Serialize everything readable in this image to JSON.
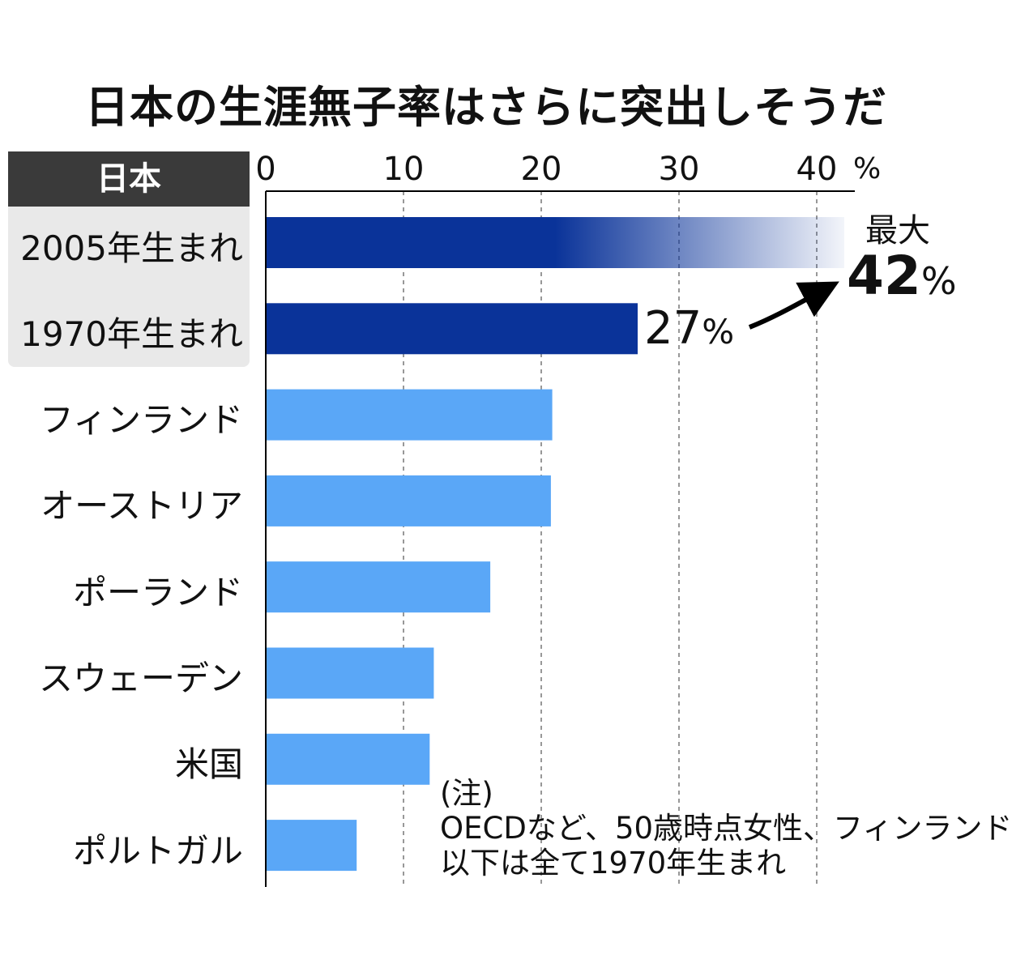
{
  "chart_data": {
    "type": "bar",
    "orientation": "horizontal",
    "title": "日本の生涯無子率はさらに突出しそうだ",
    "group_header": "日本",
    "x_ticks": [
      "0",
      "10",
      "20",
      "30",
      "40"
    ],
    "x_unit": "%",
    "xlim": [
      0,
      43
    ],
    "grid": "vertical dashed",
    "categories": [
      "2005年生まれ",
      "1970年生まれ",
      "フィンランド",
      "オーストリア",
      "ポーランド",
      "スウェーデン",
      "米国",
      "ポルトガル"
    ],
    "values": [
      42,
      27,
      20.8,
      20.7,
      16.3,
      12.2,
      11.9,
      6.6
    ],
    "annotations": {
      "max_label": "最大",
      "max_value": "42",
      "max_unit": "%",
      "value_1970": "27",
      "value_1970_unit": "%"
    },
    "note_lines": [
      "(注)",
      "OECDなど、50歳時点女性、フィンランド",
      "以下は全て1970年生まれ"
    ],
    "colors": {
      "japan": "#0a3399",
      "other": "#5aa7f7",
      "header": "#3a3a3a",
      "group_bg": "#e9e9e9"
    }
  }
}
